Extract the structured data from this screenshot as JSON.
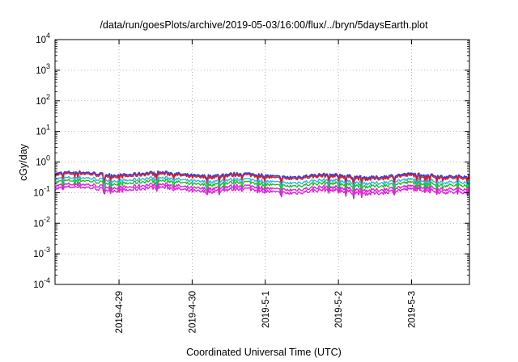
{
  "chart_data": {
    "type": "line",
    "title": "/data/run/goesPlots/archive/2019-05-03/16:00/flux/../bryn/5daysEarth.plot",
    "xlabel": "Coordinated Universal Time (UTC)",
    "ylabel": "cGy/day",
    "yscale": "log",
    "ylim": [
      0.0001,
      10000
    ],
    "xlim": [
      "2019-04-28T03:00",
      "2019-05-03T19:00"
    ],
    "grid": true,
    "y_ticks": [
      {
        "mantissa": "10",
        "exp": "-4"
      },
      {
        "mantissa": "10",
        "exp": "-3"
      },
      {
        "mantissa": "10",
        "exp": "-2"
      },
      {
        "mantissa": "10",
        "exp": "-1"
      },
      {
        "mantissa": "10",
        "exp": "0"
      },
      {
        "mantissa": "10",
        "exp": "1"
      },
      {
        "mantissa": "10",
        "exp": "2"
      },
      {
        "mantissa": "10",
        "exp": "3"
      },
      {
        "mantissa": "10",
        "exp": "4"
      }
    ],
    "x_ticks": [
      "2019-4-29",
      "2019-4-30",
      "2019-5-1",
      "2019-5-2",
      "2019-5-3"
    ],
    "series": [
      {
        "color": "#3a3adf",
        "level": 0.38,
        "dip": 0.7
      },
      {
        "color": "#e02020",
        "level": 0.34,
        "dip": 0.72
      },
      {
        "color": "#2ab7e6",
        "level": 0.25,
        "dip": 0.6
      },
      {
        "color": "#20c020",
        "level": 0.2,
        "dip": 0.8
      },
      {
        "color": "#e020e0",
        "level": 0.15,
        "dip": 0.45
      },
      {
        "color": "#e020e0",
        "level": 0.12,
        "dip": 0.3
      }
    ]
  }
}
